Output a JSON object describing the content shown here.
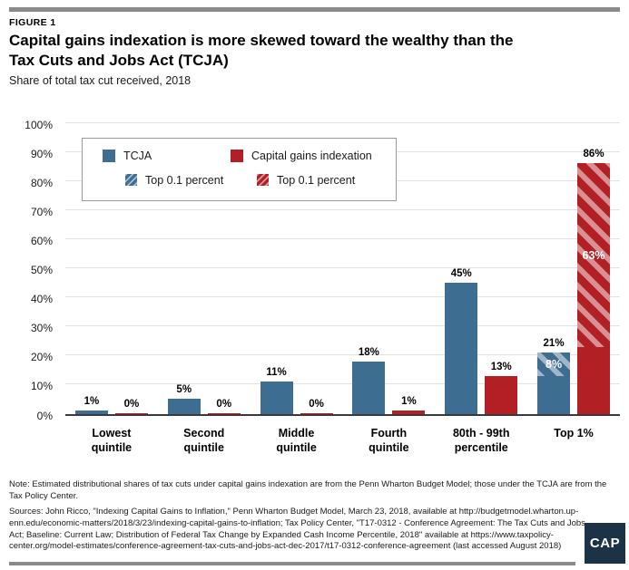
{
  "figure_label": "FIGURE 1",
  "title_lines": [
    "Capital gains indexation is more skewed toward the wealthy than the",
    "Tax Cuts and Jobs Act (TCJA)"
  ],
  "subtitle": "Share of total tax cut received, 2018",
  "legend": {
    "tcja_label": "TCJA",
    "cgi_label": "Capital gains indexation",
    "tcja_top01_label": "Top 0.1 percent",
    "cgi_top01_label": "Top 0.1 percent"
  },
  "chart_data": {
    "type": "bar",
    "categories": [
      "Lowest\nquintile",
      "Second\nquintile",
      "Middle\nquintile",
      "Fourth\nquintile",
      "80th - 99th\npercentile",
      "Top 1%"
    ],
    "series": [
      {
        "name": "TCJA",
        "color": "#3d6d91",
        "values": [
          1,
          5,
          11,
          18,
          45,
          21
        ],
        "top_0_1_percent_overlay": [
          null,
          null,
          null,
          null,
          null,
          8
        ]
      },
      {
        "name": "Capital gains indexation",
        "color": "#b22025",
        "values": [
          0,
          0,
          0,
          1,
          13,
          86
        ],
        "top_0_1_percent_overlay": [
          null,
          null,
          null,
          null,
          null,
          63
        ]
      }
    ],
    "value_label_format": "{v}%",
    "ylim": [
      0,
      100
    ],
    "ytick_step": 10,
    "ytick_format": "{v}%",
    "grid": true,
    "grid_color": "#e2e2e2",
    "legend_position": "top-left-inside"
  },
  "note": "Note: Estimated distributional shares of tax cuts under capital gains indexation are from the Penn Wharton Budget Model; those under the TCJA are from the Tax Policy Center.",
  "sources": "Sources: John Ricco, \"Indexing Capital Gains to Inflation,\" Penn Wharton Budget Model, March 23, 2018, available at http://budgetmodel.wharton.up-enn.edu/economic-matters/2018/3/23/indexing-capital-gains-to-inflation; Tax Policy Center, \"T17-0312 - Conference Agreement: The Tax Cuts and Jobs Act; Baseline: Current Law; Distribution of Federal Tax Change by Expanded Cash Income Percentile, 2018\" available at https://www.taxpolicy-center.org/model-estimates/conference-agreement-tax-cuts-and-jobs-act-dec-2017/t17-0312-conference-agreement (last accessed August 2018)",
  "logo": {
    "text": "CAP",
    "bg_color": "#1c3246"
  }
}
